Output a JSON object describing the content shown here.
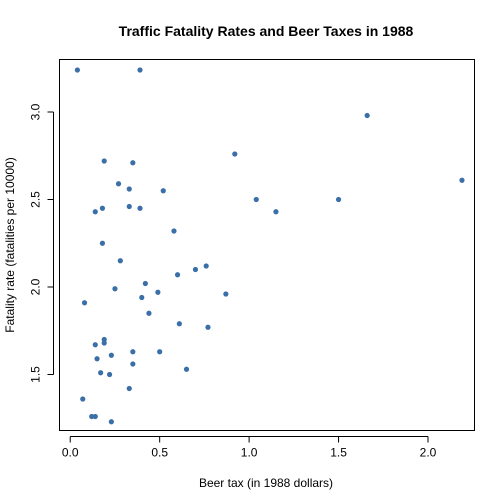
{
  "chart_data": {
    "type": "scatter",
    "title": "Traffic Fatality Rates and Beer Taxes in 1988",
    "xlabel": "Beer tax (in 1988 dollars)",
    "ylabel": "Fatality rate (fatalities per 10000)",
    "xlim": [
      0.0,
      2.2
    ],
    "ylim": [
      1.2,
      3.25
    ],
    "x_ticks": [
      0.0,
      0.5,
      1.0,
      1.5,
      2.0
    ],
    "x_tick_labels": [
      "0.0",
      "0.5",
      "1.0",
      "1.5",
      "2.0"
    ],
    "y_ticks": [
      1.5,
      2.0,
      2.5,
      3.0
    ],
    "y_tick_labels": [
      "1.5",
      "2.0",
      "2.5",
      "3.0"
    ],
    "grid": false,
    "point_color": "#3a6fa8",
    "points": [
      {
        "x": 0.04,
        "y": 3.24
      },
      {
        "x": 0.39,
        "y": 3.24
      },
      {
        "x": 1.66,
        "y": 2.98
      },
      {
        "x": 0.92,
        "y": 2.76
      },
      {
        "x": 0.19,
        "y": 2.72
      },
      {
        "x": 0.35,
        "y": 2.71
      },
      {
        "x": 2.19,
        "y": 2.61
      },
      {
        "x": 0.27,
        "y": 2.59
      },
      {
        "x": 0.33,
        "y": 2.56
      },
      {
        "x": 0.52,
        "y": 2.55
      },
      {
        "x": 1.04,
        "y": 2.5
      },
      {
        "x": 1.5,
        "y": 2.5
      },
      {
        "x": 0.33,
        "y": 2.46
      },
      {
        "x": 0.39,
        "y": 2.45
      },
      {
        "x": 0.18,
        "y": 2.45
      },
      {
        "x": 0.14,
        "y": 2.43
      },
      {
        "x": 1.15,
        "y": 2.43
      },
      {
        "x": 0.58,
        "y": 2.32
      },
      {
        "x": 0.18,
        "y": 2.25
      },
      {
        "x": 0.28,
        "y": 2.15
      },
      {
        "x": 0.76,
        "y": 2.12
      },
      {
        "x": 0.7,
        "y": 2.1
      },
      {
        "x": 0.6,
        "y": 2.07
      },
      {
        "x": 0.42,
        "y": 2.02
      },
      {
        "x": 0.25,
        "y": 1.99
      },
      {
        "x": 0.49,
        "y": 1.97
      },
      {
        "x": 0.87,
        "y": 1.96
      },
      {
        "x": 0.4,
        "y": 1.94
      },
      {
        "x": 0.08,
        "y": 1.91
      },
      {
        "x": 0.44,
        "y": 1.85
      },
      {
        "x": 0.61,
        "y": 1.79
      },
      {
        "x": 0.77,
        "y": 1.77
      },
      {
        "x": 0.19,
        "y": 1.7
      },
      {
        "x": 0.19,
        "y": 1.68
      },
      {
        "x": 0.14,
        "y": 1.67
      },
      {
        "x": 0.35,
        "y": 1.63
      },
      {
        "x": 0.5,
        "y": 1.63
      },
      {
        "x": 0.23,
        "y": 1.61
      },
      {
        "x": 0.15,
        "y": 1.59
      },
      {
        "x": 0.35,
        "y": 1.56
      },
      {
        "x": 0.65,
        "y": 1.53
      },
      {
        "x": 0.17,
        "y": 1.51
      },
      {
        "x": 0.22,
        "y": 1.5
      },
      {
        "x": 0.33,
        "y": 1.42
      },
      {
        "x": 0.07,
        "y": 1.36
      },
      {
        "x": 0.12,
        "y": 1.26
      },
      {
        "x": 0.14,
        "y": 1.26
      },
      {
        "x": 0.23,
        "y": 1.23
      }
    ]
  }
}
